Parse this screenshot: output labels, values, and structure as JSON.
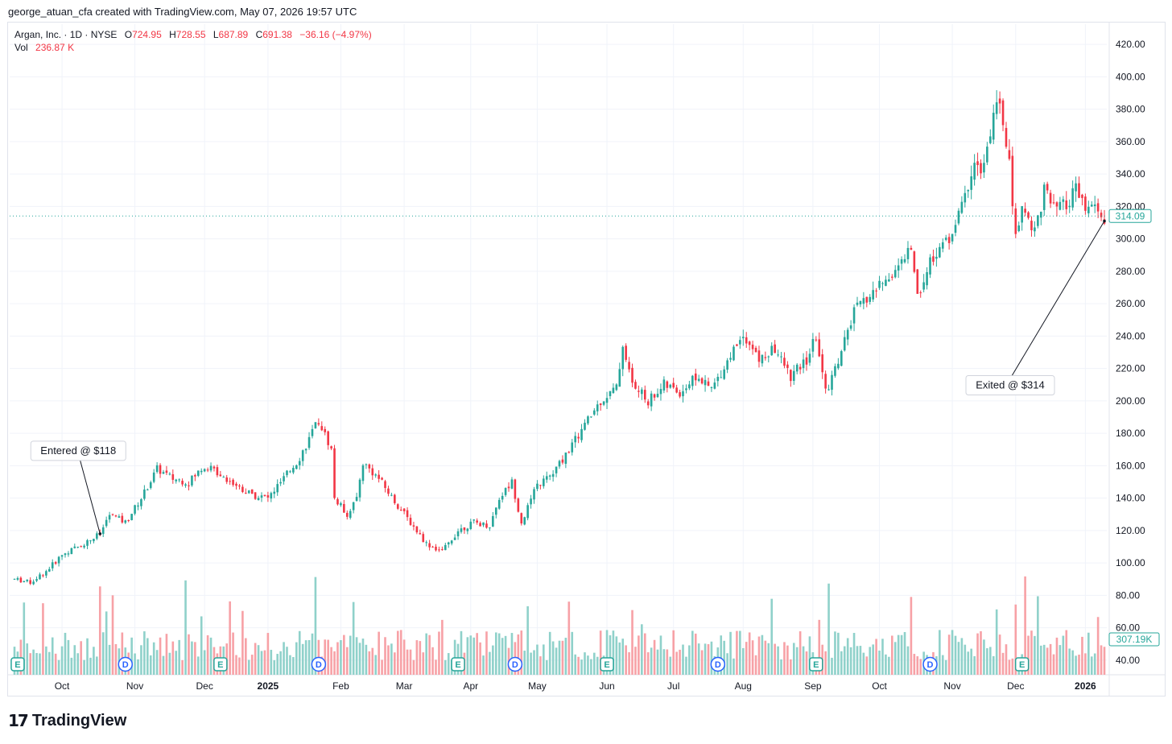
{
  "header": {
    "credit": "george_atuan_cfa created with TradingView.com, May 07, 2026 19:57 UTC"
  },
  "legend": {
    "symbol": "Argan, Inc. · 1D · NYSE",
    "o_label": "O",
    "o_value": "724.95",
    "h_label": "H",
    "h_value": "728.55",
    "l_label": "L",
    "l_value": "687.89",
    "c_label": "C",
    "c_value": "691.38",
    "change": "−36.16 (−4.97%)",
    "vol_label": "Vol",
    "vol_value": "236.87 K"
  },
  "colors": {
    "up": "#26a69a",
    "down": "#f23645",
    "up_vol": "#8fd1ca",
    "down_vol": "#f7a1a6",
    "grid": "#f0f3fa",
    "text": "#131722"
  },
  "chart_data": {
    "type": "candlestick",
    "title": "Argan, Inc. · 1D · NYSE",
    "xlabel": "",
    "ylabel": "",
    "ylim": [
      30,
      430
    ],
    "yticks": [
      "40.00",
      "60.00",
      "80.00",
      "100.00",
      "120.00",
      "140.00",
      "160.00",
      "180.00",
      "200.00",
      "220.00",
      "240.00",
      "260.00",
      "280.00",
      "300.00",
      "320.00",
      "340.00",
      "360.00",
      "380.00",
      "400.00",
      "420.00"
    ],
    "month_labels": [
      {
        "label": "Oct",
        "index": 15
      },
      {
        "label": "Nov",
        "index": 38
      },
      {
        "label": "Dec",
        "index": 60
      },
      {
        "label": "2025",
        "index": 80,
        "bold": true
      },
      {
        "label": "Feb",
        "index": 103
      },
      {
        "label": "Mar",
        "index": 123
      },
      {
        "label": "Apr",
        "index": 144
      },
      {
        "label": "May",
        "index": 165
      },
      {
        "label": "Jun",
        "index": 187
      },
      {
        "label": "Jul",
        "index": 208
      },
      {
        "label": "Aug",
        "index": 230
      },
      {
        "label": "Sep",
        "index": 252
      },
      {
        "label": "Oct",
        "index": 273
      },
      {
        "label": "Nov",
        "index": 296
      },
      {
        "label": "Dec",
        "index": 316
      },
      {
        "label": "2026",
        "index": 338,
        "bold": true
      }
    ],
    "last_price": "314.09",
    "last_volume": "307.19K",
    "annotations": [
      {
        "text": "Entered @ $118",
        "index": 27,
        "price": 118
      },
      {
        "text": "Exited @ $314",
        "index": 344,
        "price": 311
      }
    ],
    "events": [
      {
        "type": "E",
        "index": 1
      },
      {
        "type": "D",
        "index": 35
      },
      {
        "type": "E",
        "index": 65
      },
      {
        "type": "D",
        "index": 96
      },
      {
        "type": "E",
        "index": 140
      },
      {
        "type": "D",
        "index": 158
      },
      {
        "type": "E",
        "index": 187
      },
      {
        "type": "D",
        "index": 222
      },
      {
        "type": "E",
        "index": 253
      },
      {
        "type": "D",
        "index": 289
      },
      {
        "type": "E",
        "index": 318
      }
    ],
    "keypoints": [
      [
        0,
        90
      ],
      [
        5,
        88
      ],
      [
        10,
        95
      ],
      [
        15,
        105
      ],
      [
        22,
        112
      ],
      [
        27,
        118
      ],
      [
        30,
        130
      ],
      [
        35,
        125
      ],
      [
        40,
        140
      ],
      [
        45,
        158
      ],
      [
        50,
        152
      ],
      [
        55,
        150
      ],
      [
        60,
        160
      ],
      [
        65,
        155
      ],
      [
        70,
        148
      ],
      [
        75,
        142
      ],
      [
        80,
        140
      ],
      [
        85,
        152
      ],
      [
        90,
        165
      ],
      [
        96,
        188
      ],
      [
        100,
        170
      ],
      [
        101,
        140
      ],
      [
        105,
        130
      ],
      [
        108,
        140
      ],
      [
        110,
        162
      ],
      [
        115,
        152
      ],
      [
        120,
        138
      ],
      [
        125,
        125
      ],
      [
        130,
        112
      ],
      [
        135,
        107
      ],
      [
        140,
        120
      ],
      [
        145,
        125
      ],
      [
        150,
        123
      ],
      [
        153,
        140
      ],
      [
        157,
        150
      ],
      [
        160,
        125
      ],
      [
        165,
        148
      ],
      [
        170,
        155
      ],
      [
        175,
        170
      ],
      [
        180,
        185
      ],
      [
        185,
        200
      ],
      [
        190,
        208
      ],
      [
        192,
        235
      ],
      [
        195,
        210
      ],
      [
        200,
        200
      ],
      [
        205,
        210
      ],
      [
        210,
        205
      ],
      [
        215,
        215
      ],
      [
        220,
        207
      ],
      [
        225,
        225
      ],
      [
        230,
        242
      ],
      [
        235,
        225
      ],
      [
        240,
        232
      ],
      [
        245,
        215
      ],
      [
        250,
        225
      ],
      [
        253,
        240
      ],
      [
        256,
        205
      ],
      [
        260,
        225
      ],
      [
        265,
        255
      ],
      [
        270,
        265
      ],
      [
        275,
        275
      ],
      [
        280,
        285
      ],
      [
        283,
        295
      ],
      [
        285,
        265
      ],
      [
        290,
        290
      ],
      [
        295,
        300
      ],
      [
        300,
        325
      ],
      [
        303,
        350
      ],
      [
        305,
        340
      ],
      [
        308,
        360
      ],
      [
        310,
        390
      ],
      [
        312,
        370
      ],
      [
        314,
        345
      ],
      [
        316,
        300
      ],
      [
        318,
        320
      ],
      [
        322,
        305
      ],
      [
        325,
        330
      ],
      [
        328,
        318
      ],
      [
        332,
        320
      ],
      [
        335,
        330
      ],
      [
        338,
        318
      ],
      [
        340,
        320
      ],
      [
        344,
        311
      ]
    ],
    "n_candles": 345
  }
}
